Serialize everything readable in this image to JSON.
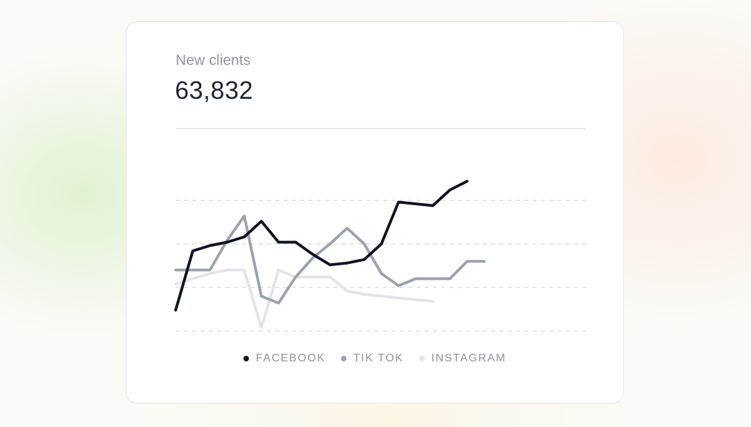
{
  "card": {
    "label": "New clients",
    "value": "63,832"
  },
  "chart_data": {
    "type": "line",
    "grid": true,
    "ylim": [
      0,
      100
    ],
    "x": [
      0,
      1,
      2,
      3,
      4,
      5,
      6,
      7,
      8,
      9,
      10,
      11,
      12,
      13,
      14,
      15,
      16,
      17,
      18,
      19,
      20,
      21,
      22,
      23,
      24
    ],
    "series": [
      {
        "name": "FACEBOOK",
        "color": "#0f1220",
        "values": [
          12,
          46,
          49,
          51,
          54,
          63,
          51,
          51,
          44,
          38,
          39,
          41,
          50,
          74,
          73,
          72,
          81,
          86,
          null,
          null,
          null,
          null,
          null,
          null,
          null
        ]
      },
      {
        "name": "TIK TOK",
        "color": "#9ca1ad",
        "values": [
          35,
          35,
          35,
          52,
          66,
          20,
          16,
          31,
          42,
          50,
          59,
          50,
          33,
          26,
          30,
          30,
          30,
          40,
          40,
          null,
          null,
          null,
          null,
          null,
          null
        ]
      },
      {
        "name": "INSTAGRAM",
        "color": "#e2e4e7",
        "values": [
          27,
          30,
          33,
          35,
          35,
          2,
          35,
          31,
          31,
          31,
          23,
          21,
          20,
          19,
          18,
          17,
          null,
          null,
          null,
          null,
          null,
          null,
          null,
          null,
          null
        ]
      }
    ]
  }
}
